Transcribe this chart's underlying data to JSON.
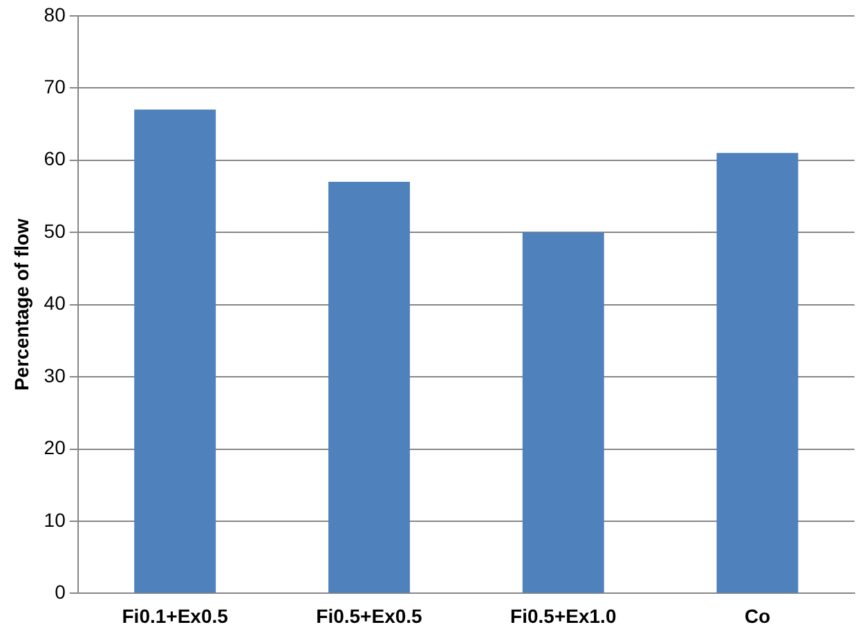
{
  "chart_data": {
    "type": "bar",
    "ylabel": "Percentage of flow",
    "categories": [
      "Fi0.1+Ex0.5",
      "Fi0.5+Ex0.5",
      "Fi0.5+Ex1.0",
      "Co"
    ],
    "values": [
      67,
      57,
      50,
      61
    ],
    "color": "#4f81bd",
    "ylim": [
      0,
      80
    ],
    "yticks": [
      0,
      10,
      20,
      30,
      40,
      50,
      60,
      70,
      80
    ],
    "grid": "y",
    "legend": false
  }
}
